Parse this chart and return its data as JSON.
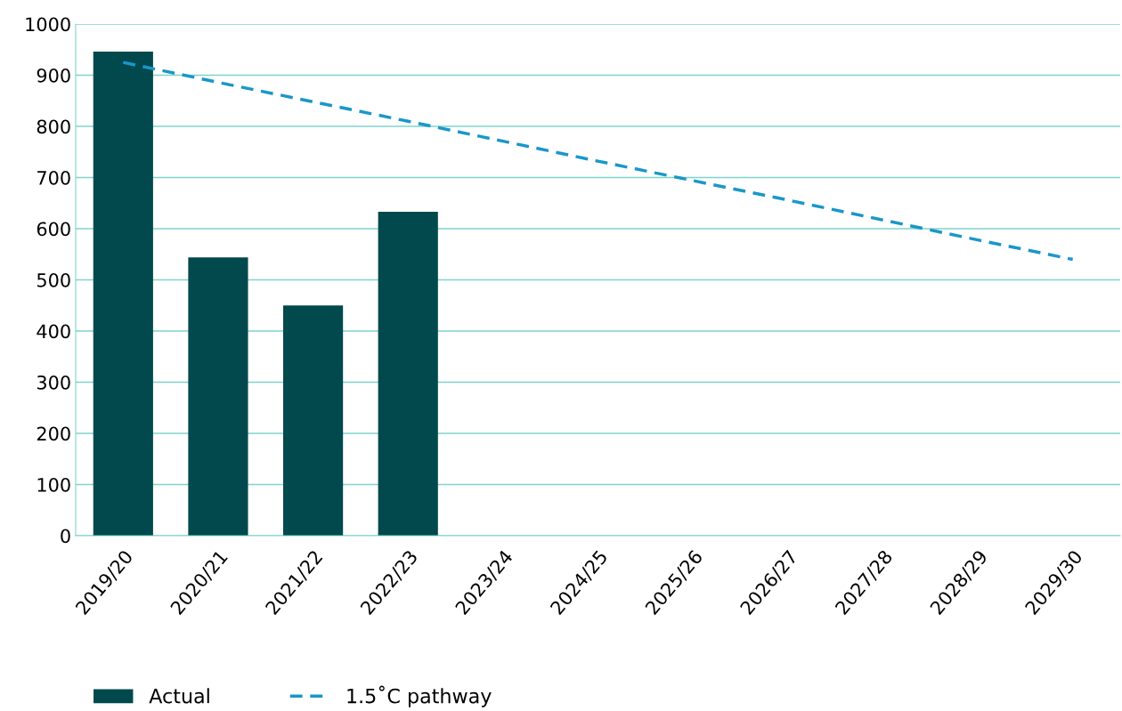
{
  "chart_data": {
    "type": "bar",
    "categories": [
      "2019/20",
      "2020/21",
      "2021/22",
      "2022/23",
      "2023/24",
      "2024/25",
      "2025/26",
      "2026/27",
      "2027/28",
      "2028/29",
      "2029/30"
    ],
    "series": [
      {
        "name": "Actual",
        "color": "#02494d",
        "values": [
          946,
          544,
          450,
          633,
          null,
          null,
          null,
          null,
          null,
          null,
          null
        ]
      },
      {
        "name": "1.5˚C pathway",
        "type": "line",
        "color": "#1a97c9",
        "line_style": "dashed",
        "values": [
          925,
          886,
          848,
          810,
          771,
          732,
          694,
          656,
          617,
          578,
          540
        ]
      }
    ],
    "ylim": [
      0,
      1000
    ],
    "yticks": [
      0,
      100,
      200,
      300,
      400,
      500,
      600,
      700,
      800,
      900,
      1000
    ],
    "grid": "y",
    "legend": "bottom"
  }
}
